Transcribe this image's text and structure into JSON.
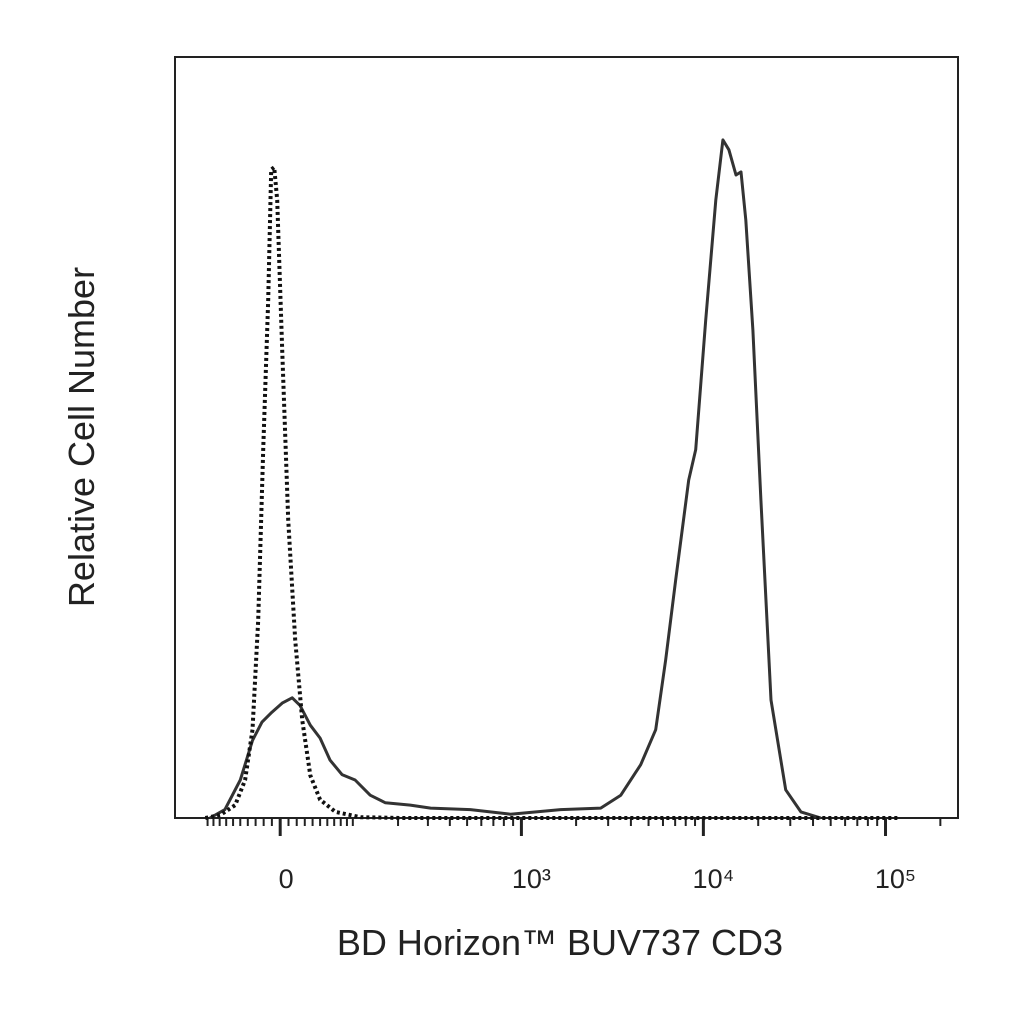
{
  "chart_data": {
    "type": "line",
    "x_label": "BD Horizon™ BUV737 CD3",
    "y_label": "Relative Cell Number",
    "xscale": "arcsinh",
    "xcofactor": 95,
    "xlim": [
      -167,
      250000
    ],
    "ylim": [
      0,
      100
    ],
    "xticks": [
      0,
      {
        "value": 1000,
        "label": "10³"
      },
      {
        "value": 10000,
        "label": "10⁴"
      },
      {
        "value": 100000,
        "label": "10⁵"
      }
    ],
    "xminorticks": [
      -100,
      -90,
      -80,
      -70,
      -60,
      -50,
      -40,
      -30,
      -20,
      -10,
      10,
      20,
      30,
      40,
      50,
      60,
      70,
      80,
      90,
      100,
      200,
      300,
      400,
      500,
      600,
      700,
      800,
      900,
      2000,
      3000,
      4000,
      5000,
      6000,
      7000,
      8000,
      9000,
      20000,
      30000,
      40000,
      50000,
      60000,
      70000,
      80000,
      90000,
      200000
    ],
    "series": [
      {
        "color": "#333333",
        "dash": "solid",
        "x": [
          -96,
          -72,
          -50,
          -34,
          -22,
          -10,
          2.4,
          14.5,
          24,
          37,
          50,
          64,
          82,
          104,
          133,
          167,
          237,
          311,
          522,
          871,
          1643,
          2730,
          3520,
          4530,
          5470,
          6210,
          7050,
          8310,
          9080,
          10300,
          11700,
          12800,
          13800,
          15100,
          16100,
          17100,
          18700,
          20700,
          23500,
          28300,
          34300,
          44200
        ],
        "values": [
          0,
          1.1,
          5.0,
          10.2,
          12.6,
          13.9,
          15.1,
          15.8,
          14.8,
          12.2,
          10.5,
          7.6,
          5.7,
          5.0,
          3.0,
          2.0,
          1.7,
          1.3,
          1.1,
          0.5,
          1.1,
          1.3,
          3.0,
          7.0,
          11.6,
          20.8,
          31.3,
          44.4,
          48.4,
          65.4,
          81.2,
          89.1,
          87.8,
          84.5,
          84.9,
          78.6,
          64.1,
          41.8,
          15.5,
          3.7,
          0.8,
          0
        ]
      },
      {
        "color": "#111111",
        "dash": "dotted",
        "x": [
          -104,
          -79,
          -57,
          -43.5,
          -34,
          -26.8,
          -20.6,
          -14.5,
          -10.8,
          -7.2,
          -3.6,
          2.4,
          9.6,
          18.1,
          26.8,
          37,
          50,
          72,
          114,
          207,
          120000
        ],
        "values": [
          0,
          0.4,
          1.7,
          5.0,
          11.6,
          26.0,
          48.4,
          68.1,
          85.2,
          85.5,
          81.2,
          61.5,
          39.2,
          23.4,
          12.9,
          5.6,
          2.4,
          0.8,
          0.1,
          0,
          0
        ]
      }
    ]
  }
}
